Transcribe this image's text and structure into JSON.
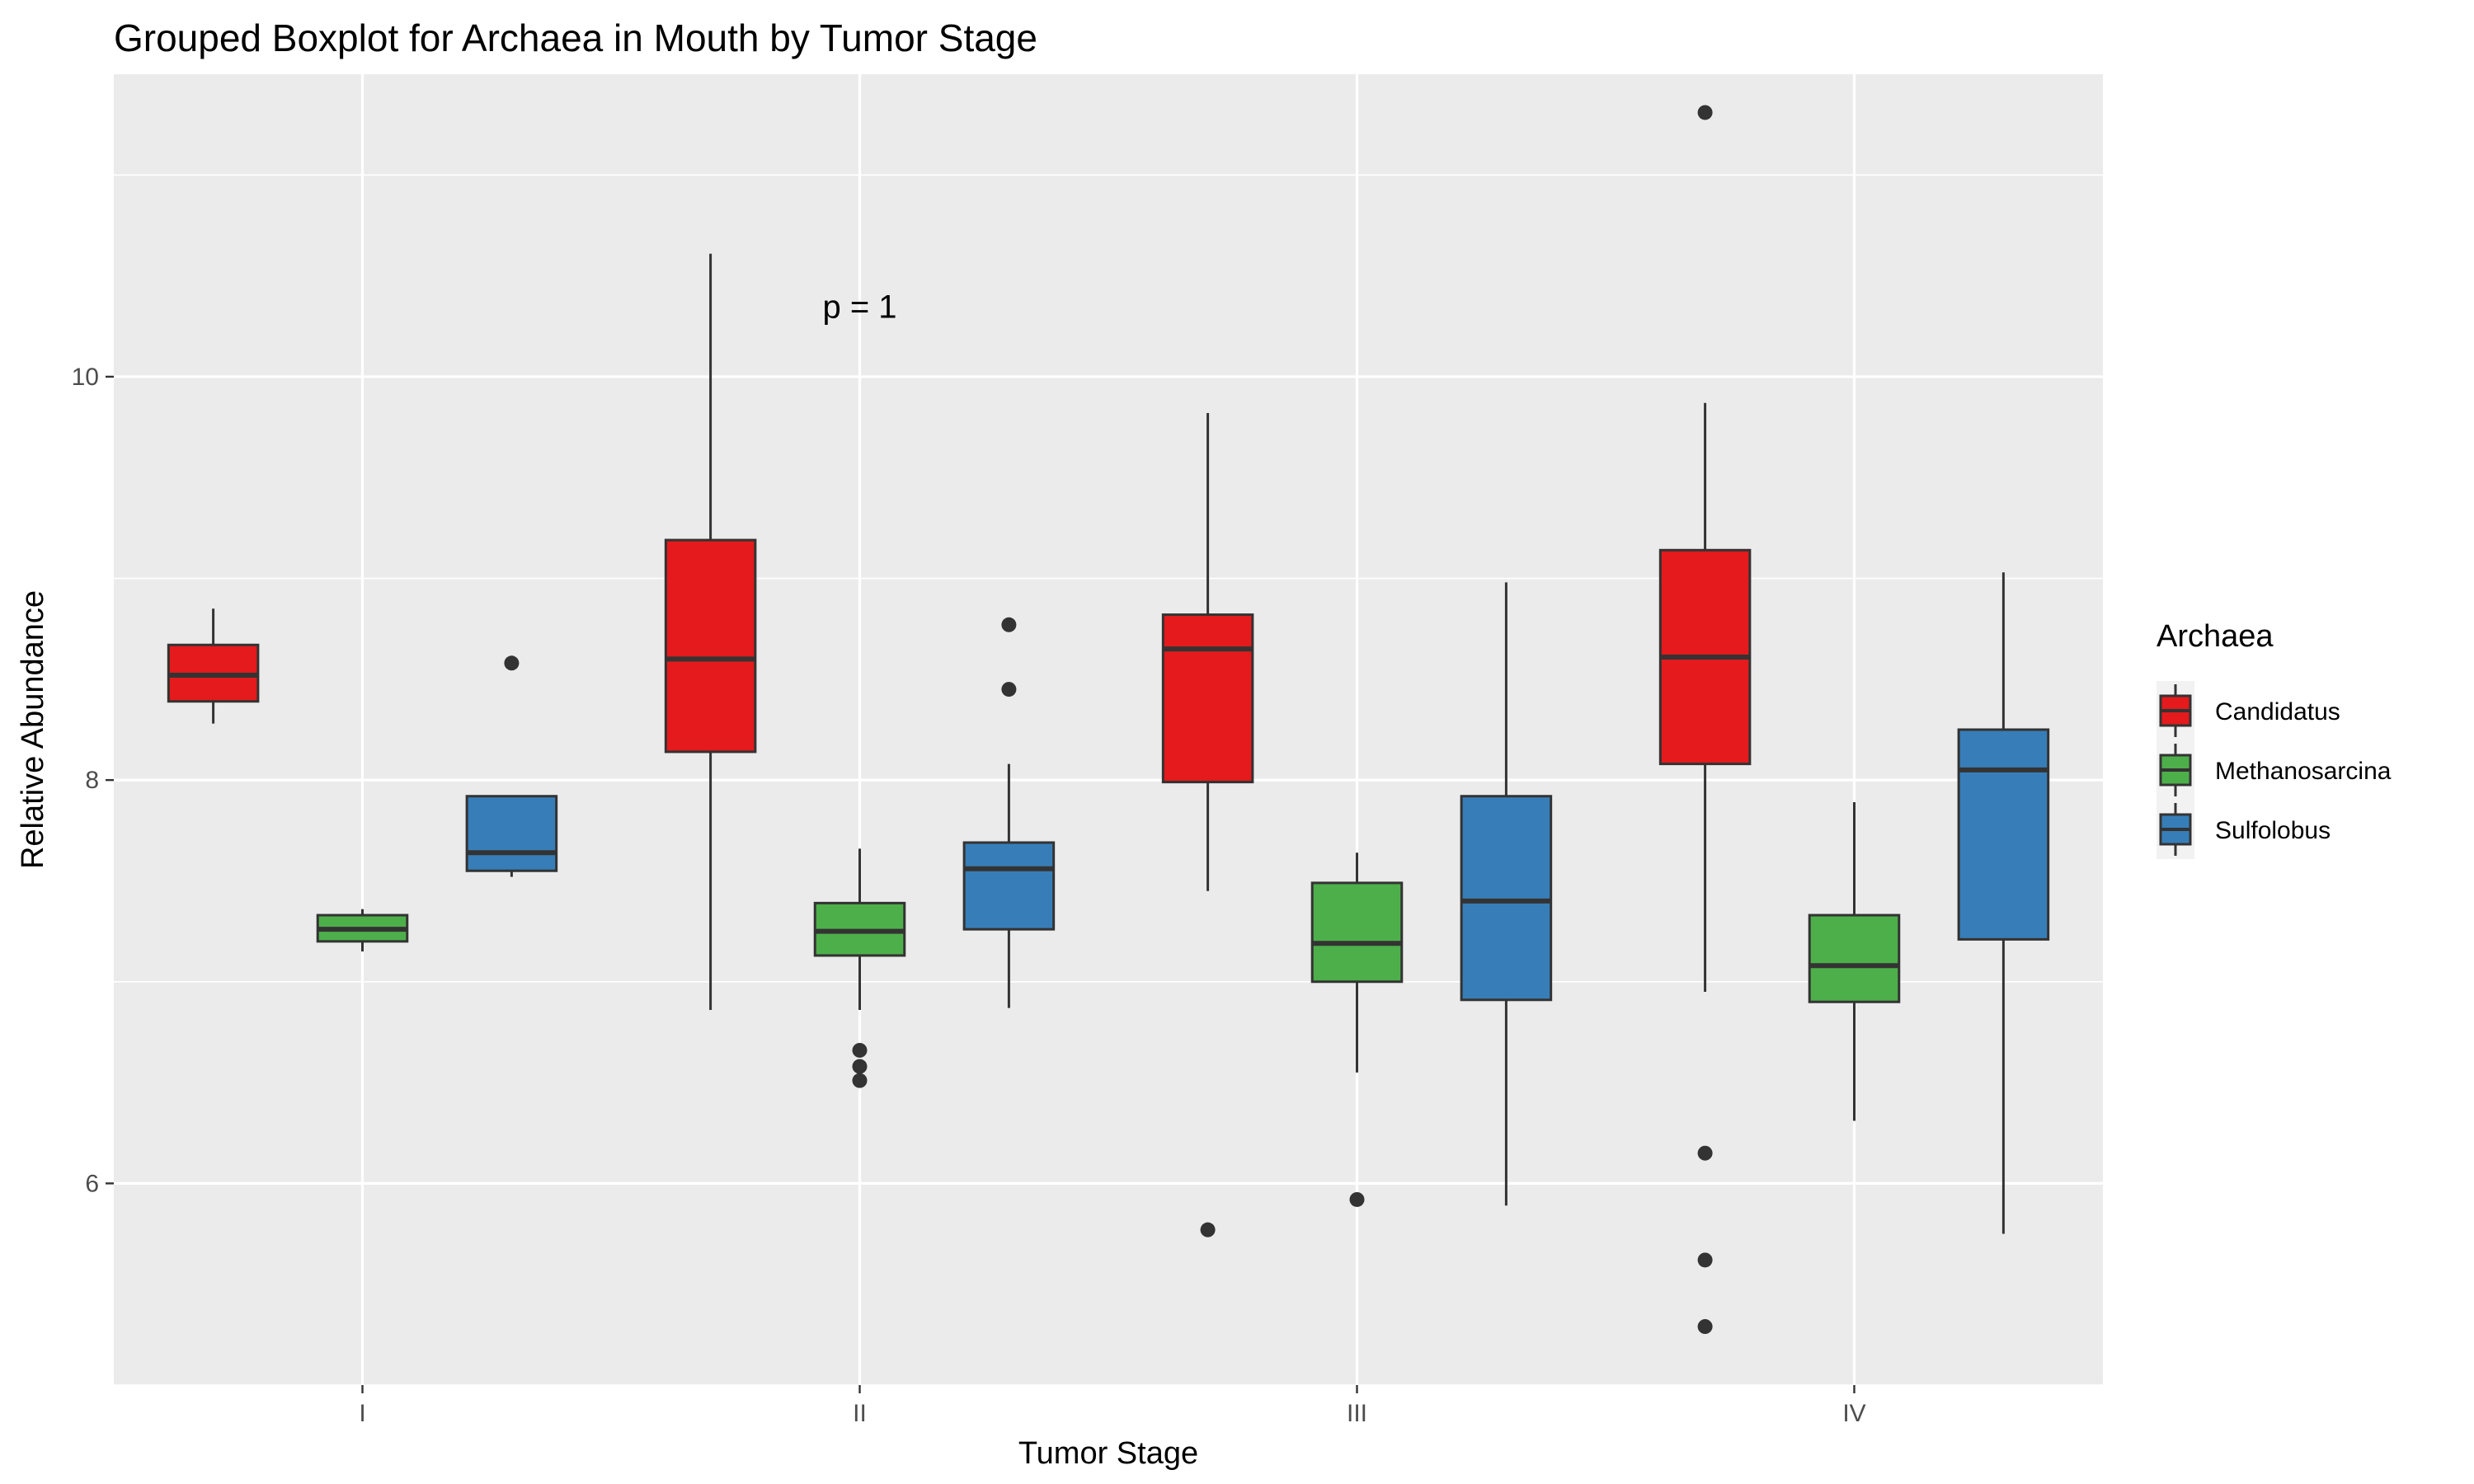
{
  "chart_data": {
    "type": "boxplot",
    "title": "Grouped Boxplot for Archaea in Mouth by Tumor Stage",
    "xlabel": "Tumor Stage",
    "ylabel": "Relative Abundance",
    "categories": [
      "I",
      "II",
      "III",
      "IV"
    ],
    "ylim": [
      5.0,
      11.5
    ],
    "yticks": [
      6,
      8,
      10
    ],
    "grid": true,
    "legend": {
      "title": "Archaea",
      "position": "right"
    },
    "annotation": {
      "text": "p = 1",
      "category": "II",
      "y": 10.35
    },
    "series": [
      {
        "name": "Candidatus",
        "color": "#E41A1C",
        "boxes": [
          {
            "category": "I",
            "whisker_low": 8.28,
            "q1": 8.39,
            "median": 8.52,
            "q3": 8.67,
            "whisker_high": 8.85,
            "outliers": []
          },
          {
            "category": "II",
            "whisker_low": 6.86,
            "q1": 8.14,
            "median": 8.6,
            "q3": 9.19,
            "whisker_high": 10.61,
            "outliers": []
          },
          {
            "category": "III",
            "whisker_low": 7.45,
            "q1": 7.99,
            "median": 8.65,
            "q3": 8.82,
            "whisker_high": 9.82,
            "outliers": [
              5.77
            ]
          },
          {
            "category": "IV",
            "whisker_low": 6.95,
            "q1": 8.08,
            "median": 8.61,
            "q3": 9.14,
            "whisker_high": 9.87,
            "outliers": [
              11.31,
              6.15,
              5.62,
              5.29
            ]
          }
        ]
      },
      {
        "name": "Methanosarcina",
        "color": "#4DAF4A",
        "boxes": [
          {
            "category": "I",
            "whisker_low": 7.15,
            "q1": 7.2,
            "median": 7.26,
            "q3": 7.33,
            "whisker_high": 7.36,
            "outliers": []
          },
          {
            "category": "II",
            "whisker_low": 6.86,
            "q1": 7.13,
            "median": 7.25,
            "q3": 7.39,
            "whisker_high": 7.66,
            "outliers": [
              6.66,
              6.58,
              6.51
            ]
          },
          {
            "category": "III",
            "whisker_low": 6.55,
            "q1": 7.0,
            "median": 7.19,
            "q3": 7.49,
            "whisker_high": 7.64,
            "outliers": [
              5.92
            ]
          },
          {
            "category": "IV",
            "whisker_low": 6.31,
            "q1": 6.9,
            "median": 7.08,
            "q3": 7.33,
            "whisker_high": 7.89,
            "outliers": []
          }
        ]
      },
      {
        "name": "Sulfolobus",
        "color": "#377EB8",
        "boxes": [
          {
            "category": "I",
            "whisker_low": 7.52,
            "q1": 7.55,
            "median": 7.64,
            "q3": 7.92,
            "whisker_high": 7.92,
            "outliers": [
              8.58
            ]
          },
          {
            "category": "II",
            "whisker_low": 6.87,
            "q1": 7.26,
            "median": 7.56,
            "q3": 7.69,
            "whisker_high": 8.08,
            "outliers": [
              8.77,
              8.45
            ]
          },
          {
            "category": "III",
            "whisker_low": 5.89,
            "q1": 6.91,
            "median": 7.4,
            "q3": 7.92,
            "whisker_high": 8.98,
            "outliers": []
          },
          {
            "category": "IV",
            "whisker_low": 5.75,
            "q1": 7.21,
            "median": 8.05,
            "q3": 8.25,
            "whisker_high": 9.03,
            "outliers": []
          }
        ]
      }
    ]
  }
}
